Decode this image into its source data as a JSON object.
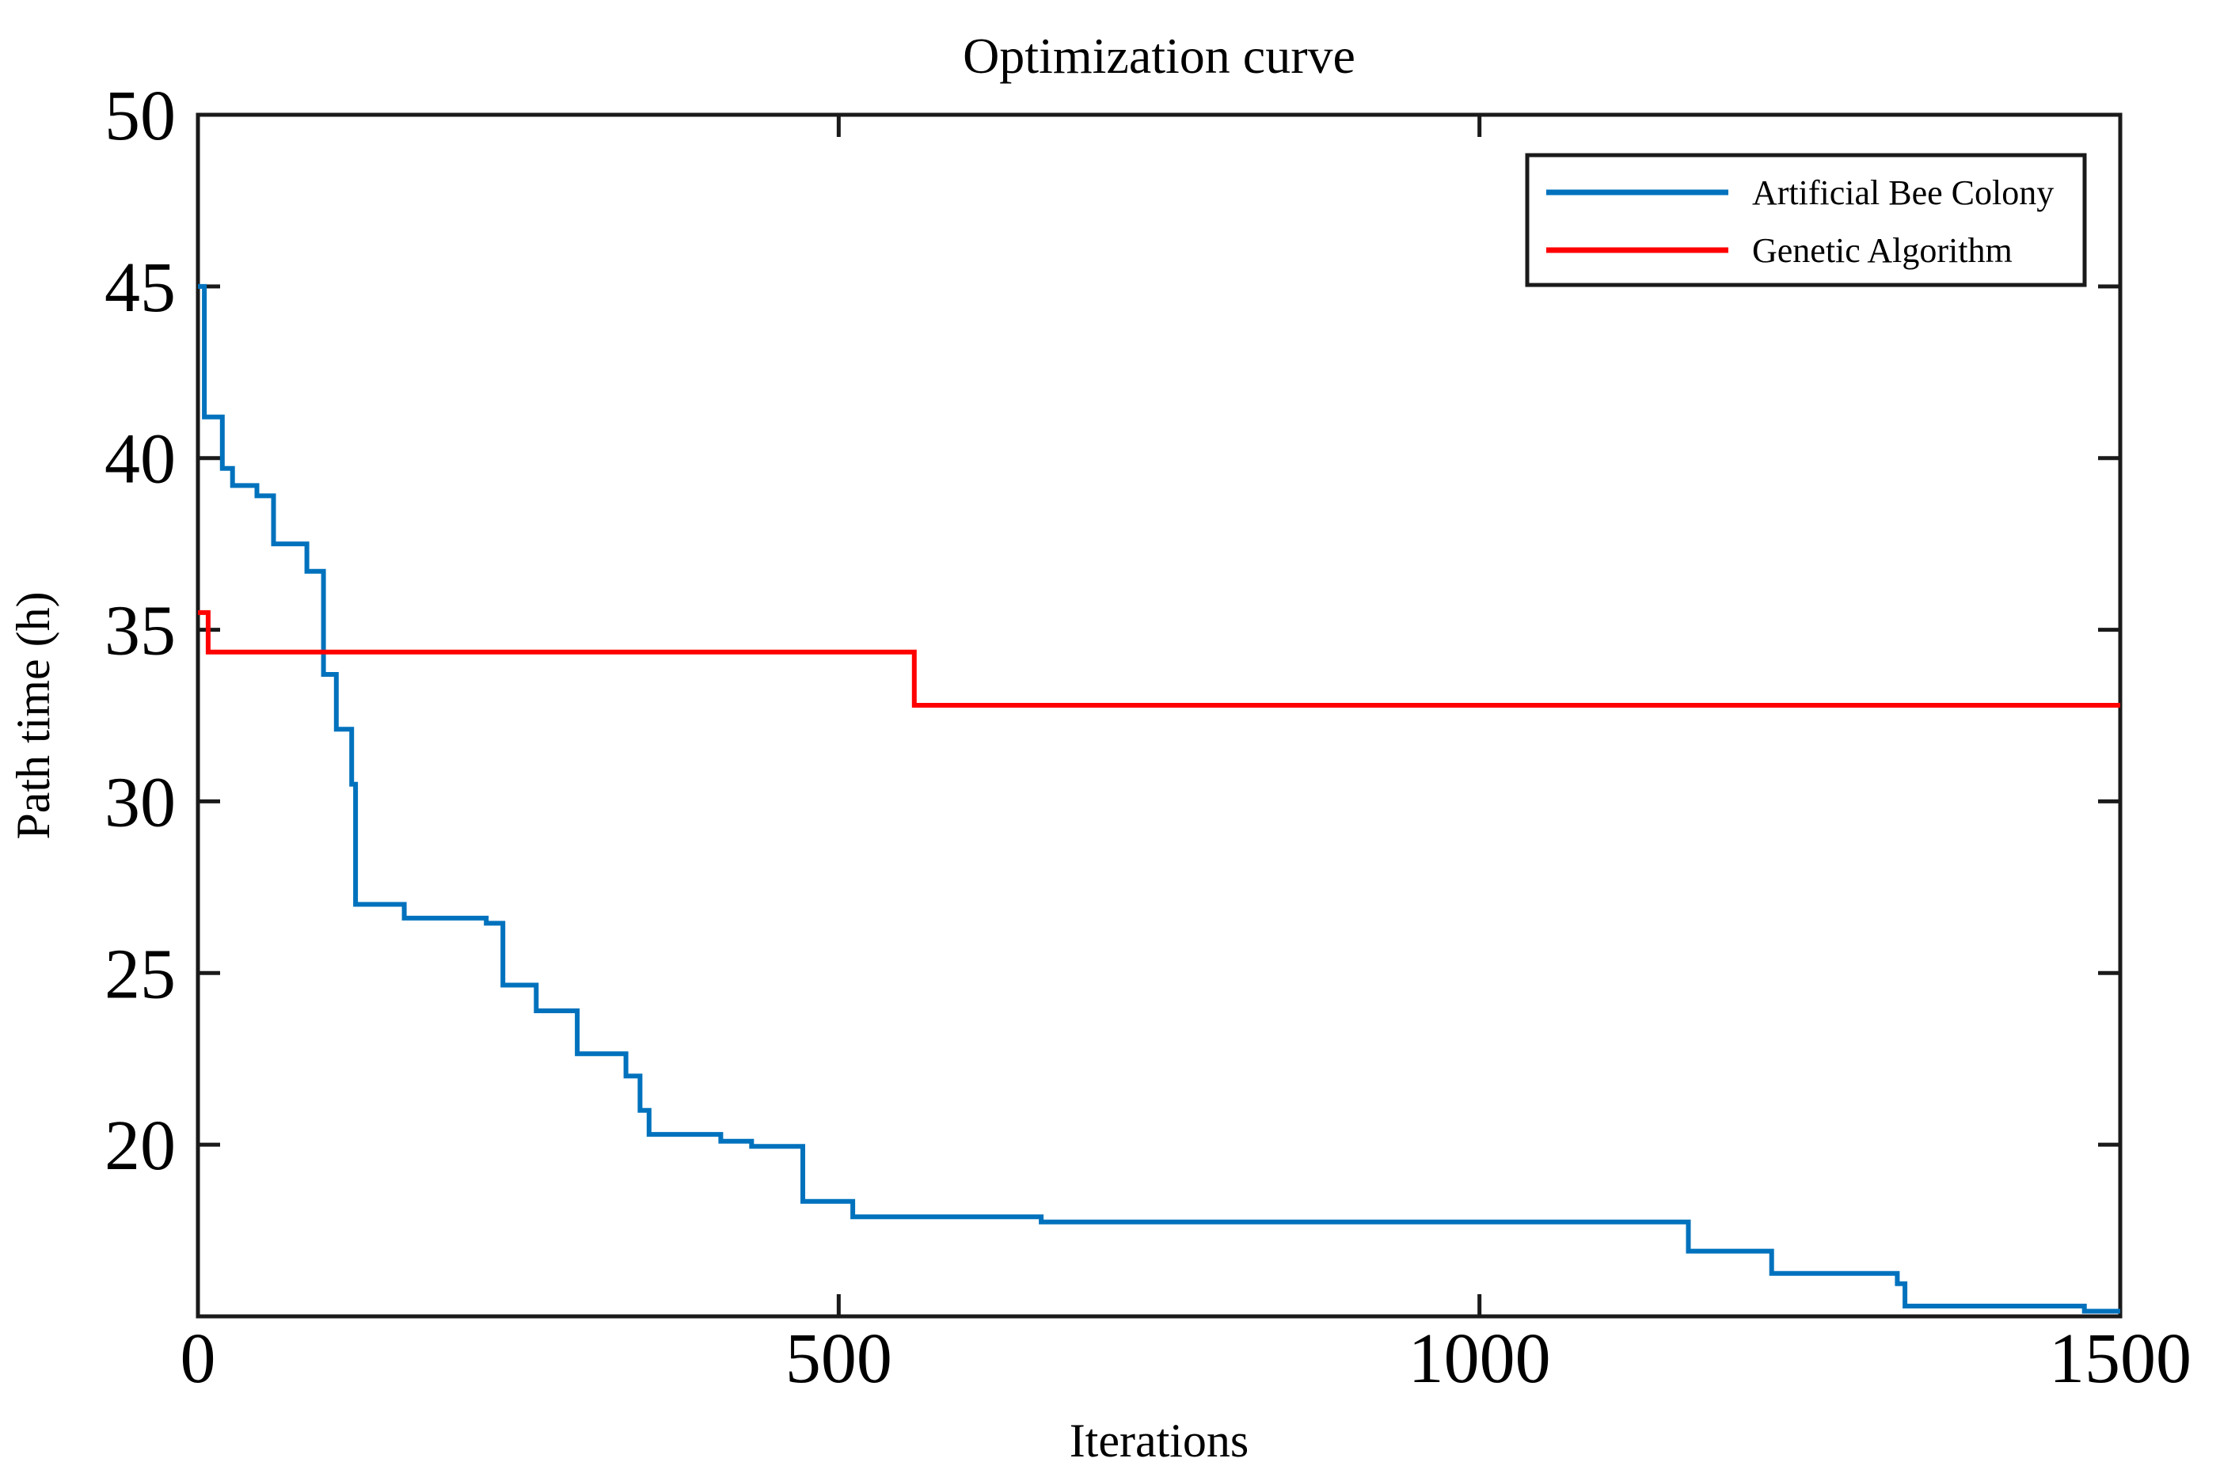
{
  "title": "Optimization curve",
  "axes": {
    "xlabel": "Iterations",
    "ylabel": "Path time (h)",
    "xlim": [
      0,
      1500
    ],
    "ylim": [
      15,
      50
    ],
    "xticks": [
      0,
      500,
      1000,
      1500
    ],
    "yticks": [
      20,
      25,
      30,
      35,
      40,
      45,
      50
    ]
  },
  "legend": {
    "items": [
      {
        "label": "Artificial Bee Colony",
        "color": "#0072BD"
      },
      {
        "label": "Genetic Algorithm",
        "color": "#FF0000"
      }
    ],
    "position": "upper right"
  },
  "colors": {
    "axis": "#1a1a1a",
    "text": "#000000",
    "background": "#ffffff",
    "abc_blue": "#0072BD",
    "ga_red": "#FF0000"
  },
  "chart_data": {
    "type": "line",
    "style": "step-post",
    "title": "Optimization curve",
    "xlabel": "Iterations",
    "ylabel": "Path time (h)",
    "xlim": [
      0,
      1500
    ],
    "ylim": [
      15,
      50
    ],
    "xticks": [
      0,
      500,
      1000,
      1500
    ],
    "yticks": [
      20,
      25,
      30,
      35,
      40,
      45,
      50
    ],
    "grid": false,
    "legend_position": "upper right",
    "series": [
      {
        "name": "Artificial Bee Colony",
        "color": "#0072BD",
        "points": [
          [
            0,
            45.0
          ],
          [
            5,
            41.2
          ],
          [
            19,
            39.7
          ],
          [
            27,
            39.2
          ],
          [
            46,
            38.9
          ],
          [
            59,
            37.5
          ],
          [
            85,
            36.7
          ],
          [
            98,
            33.7
          ],
          [
            108,
            32.1
          ],
          [
            120,
            30.5
          ],
          [
            123,
            27.0
          ],
          [
            161,
            26.6
          ],
          [
            225,
            26.45
          ],
          [
            238,
            24.65
          ],
          [
            264,
            23.9
          ],
          [
            296,
            22.65
          ],
          [
            334,
            22.0
          ],
          [
            345,
            21.0
          ],
          [
            352,
            20.3
          ],
          [
            408,
            20.1
          ],
          [
            432,
            19.95
          ],
          [
            472,
            18.35
          ],
          [
            511,
            17.9
          ],
          [
            658,
            17.75
          ],
          [
            1163,
            16.9
          ],
          [
            1228,
            16.25
          ],
          [
            1326,
            15.95
          ],
          [
            1332,
            15.3
          ],
          [
            1472,
            15.15
          ],
          [
            1500,
            15.15
          ]
        ]
      },
      {
        "name": "Genetic Algorithm",
        "color": "#FF0000",
        "points": [
          [
            0,
            35.5
          ],
          [
            8,
            34.35
          ],
          [
            559,
            32.8
          ],
          [
            1500,
            32.8
          ]
        ]
      }
    ]
  }
}
